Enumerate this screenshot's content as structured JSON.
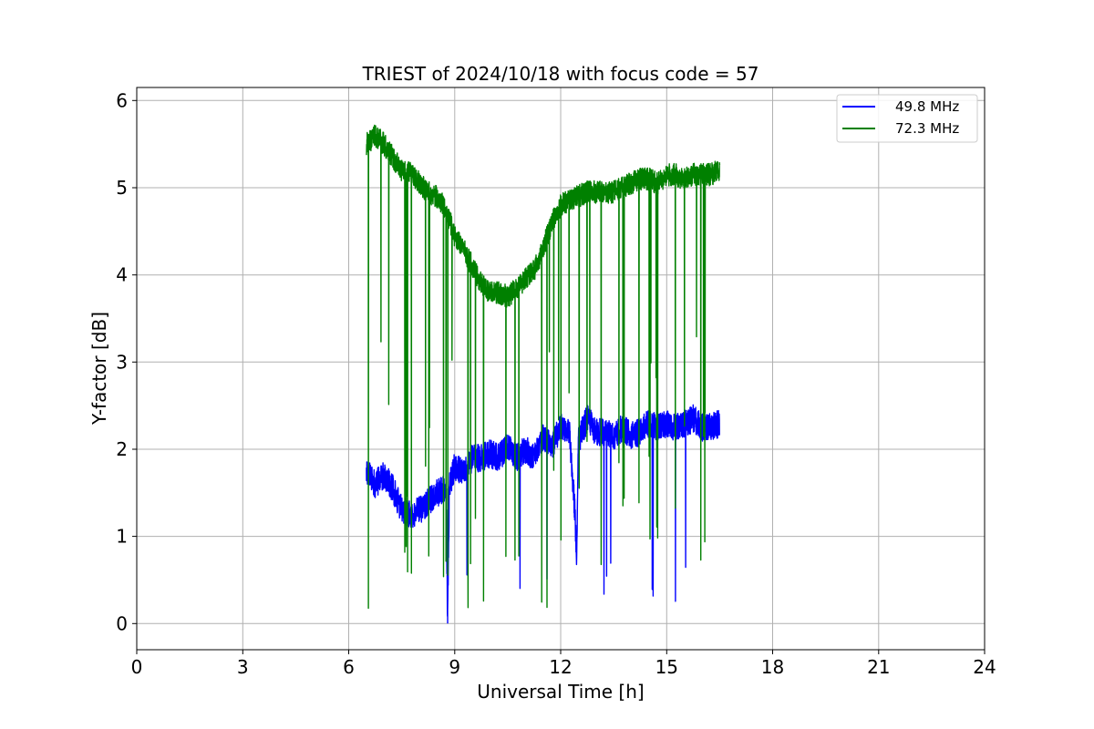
{
  "chart_data": {
    "type": "line",
    "title": "TRIEST of 2024/10/18 with focus code = 57",
    "xlabel": "Universal Time [h]",
    "ylabel": "Y-factor [dB]",
    "xlim": [
      0,
      24
    ],
    "ylim": [
      -0.3,
      6.15
    ],
    "xticks": [
      0,
      3,
      6,
      9,
      12,
      15,
      18,
      21,
      24
    ],
    "yticks": [
      0,
      1,
      2,
      3,
      4,
      5,
      6
    ],
    "grid": true,
    "legend_position": "top-right",
    "series": [
      {
        "name": "49.8 MHz",
        "color": "#0000ff",
        "x": [
          6.5,
          6.75,
          7.0,
          7.25,
          7.5,
          7.75,
          8.0,
          8.25,
          8.5,
          8.75,
          8.8,
          8.85,
          9.0,
          9.25,
          9.5,
          9.75,
          10.0,
          10.25,
          10.5,
          10.75,
          11.0,
          11.25,
          11.5,
          11.75,
          12.0,
          12.25,
          12.4,
          12.45,
          12.5,
          12.75,
          13.0,
          13.25,
          13.5,
          13.75,
          14.0,
          14.25,
          14.5,
          14.75,
          15.0,
          15.25,
          15.5,
          15.75,
          16.0,
          16.25,
          16.5
        ],
        "y": [
          1.75,
          1.6,
          1.7,
          1.55,
          1.3,
          1.25,
          1.3,
          1.4,
          1.5,
          1.55,
          0.0,
          1.6,
          1.8,
          1.75,
          1.9,
          1.9,
          1.95,
          1.9,
          2.05,
          1.9,
          2.0,
          1.9,
          2.15,
          2.05,
          2.25,
          2.2,
          1.3,
          0.8,
          2.1,
          2.35,
          2.2,
          2.2,
          2.15,
          2.25,
          2.15,
          2.2,
          2.3,
          2.25,
          2.3,
          2.25,
          2.3,
          2.35,
          2.25,
          2.25,
          2.3
        ]
      },
      {
        "name": "72.3 MHz",
        "color": "#008000",
        "x": [
          6.5,
          6.75,
          7.0,
          7.25,
          7.5,
          7.75,
          8.0,
          8.25,
          8.5,
          8.75,
          9.0,
          9.25,
          9.5,
          9.75,
          10.0,
          10.25,
          10.5,
          10.75,
          11.0,
          11.25,
          11.5,
          11.75,
          12.0,
          12.25,
          12.5,
          12.75,
          13.0,
          13.25,
          13.5,
          13.75,
          14.0,
          14.25,
          14.5,
          14.75,
          15.0,
          15.25,
          15.5,
          15.75,
          16.0,
          16.25,
          16.5
        ],
        "y": [
          5.5,
          5.6,
          5.5,
          5.35,
          5.2,
          5.2,
          5.05,
          4.95,
          4.9,
          4.75,
          4.45,
          4.3,
          4.1,
          3.9,
          3.8,
          3.8,
          3.75,
          3.85,
          3.95,
          4.05,
          4.3,
          4.6,
          4.8,
          4.85,
          4.9,
          4.95,
          4.95,
          4.95,
          4.95,
          5.0,
          5.05,
          5.1,
          5.1,
          5.05,
          5.15,
          5.15,
          5.1,
          5.15,
          5.15,
          5.15,
          5.2
        ]
      }
    ]
  }
}
